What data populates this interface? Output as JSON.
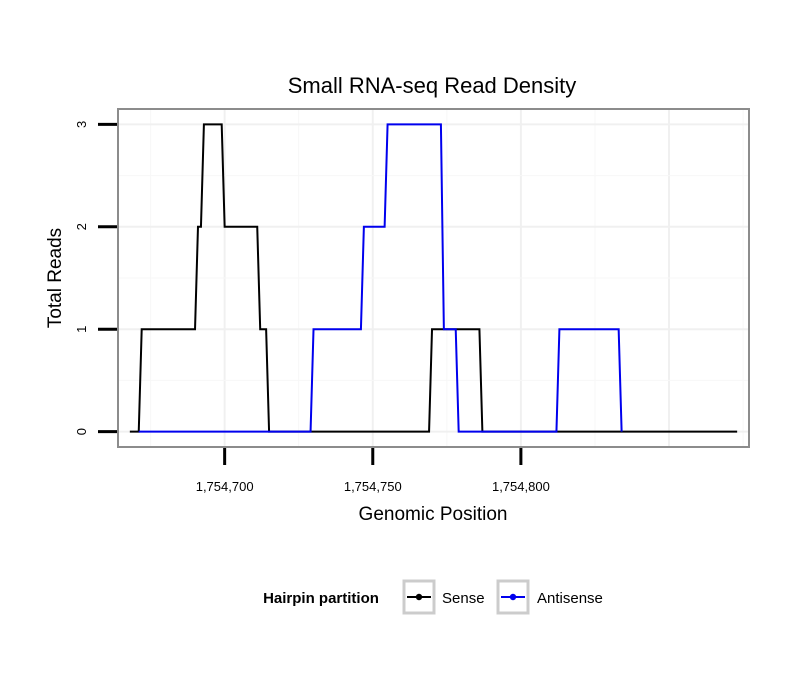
{
  "chart_data": {
    "type": "line",
    "title": "Small RNA-seq Read Density",
    "xlabel": "Genomic Position",
    "ylabel": "Total Reads",
    "xlim": [
      1754664,
      1754877
    ],
    "ylim": [
      -0.15,
      3.15
    ],
    "x_ticks": [
      1754700,
      1754750,
      1754800
    ],
    "x_tick_labels": [
      "1,754,700",
      "1,754,750",
      "1,754,800"
    ],
    "y_ticks": [
      0,
      1,
      2,
      3
    ],
    "y_tick_labels": [
      "0",
      "1",
      "2",
      "3"
    ],
    "grid": true,
    "legend": {
      "title": "Hairpin partition",
      "position": "bottom"
    },
    "series": [
      {
        "name": "Sense",
        "color": "#000000",
        "points": [
          [
            1754668,
            0
          ],
          [
            1754671,
            0
          ],
          [
            1754672,
            1
          ],
          [
            1754690,
            1
          ],
          [
            1754691,
            2
          ],
          [
            1754692,
            2
          ],
          [
            1754693,
            3
          ],
          [
            1754699,
            3
          ],
          [
            1754700,
            2
          ],
          [
            1754711,
            2
          ],
          [
            1754712,
            1
          ],
          [
            1754714,
            1
          ],
          [
            1754715,
            0
          ],
          [
            1754769,
            0
          ],
          [
            1754770,
            1
          ],
          [
            1754786,
            1
          ],
          [
            1754787,
            0
          ],
          [
            1754873,
            0
          ]
        ]
      },
      {
        "name": "Antisense",
        "color": "#0000ee",
        "points": [
          [
            1754671,
            0
          ],
          [
            1754729,
            0
          ],
          [
            1754730,
            1
          ],
          [
            1754746,
            1
          ],
          [
            1754747,
            2
          ],
          [
            1754754,
            2
          ],
          [
            1754755,
            3
          ],
          [
            1754773,
            3
          ],
          [
            1754774,
            1
          ],
          [
            1754778,
            1
          ],
          [
            1754779,
            0
          ],
          [
            1754799,
            0
          ],
          [
            1754800,
            0
          ],
          [
            1754812,
            0
          ],
          [
            1754813,
            1
          ],
          [
            1754833,
            1
          ],
          [
            1754834,
            0
          ]
        ]
      }
    ]
  }
}
